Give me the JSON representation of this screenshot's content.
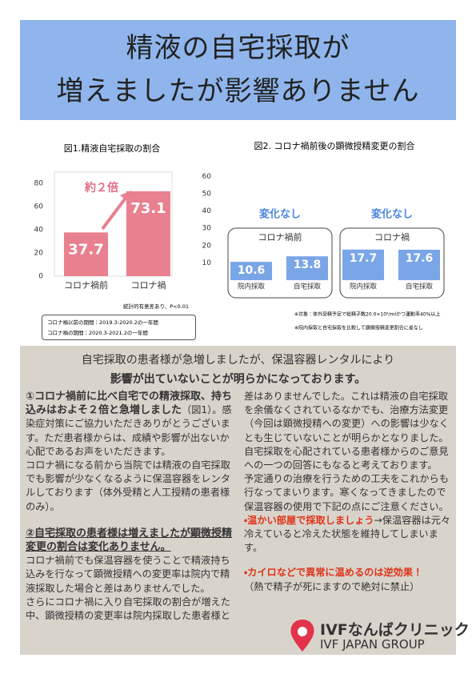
{
  "header": {
    "title_lines": [
      "精液の自宅採取が",
      "増えましたが影響ありません"
    ]
  },
  "figure1": {
    "type": "bar",
    "title": "図1.精液自宅採取の割合",
    "categories": [
      "コロナ禍前",
      "コロナ禍"
    ],
    "values": [
      37.7,
      73.1
    ],
    "color": "#e9808f",
    "ylim": [
      0,
      80
    ],
    "yticks": [
      0,
      20,
      40,
      60,
      80
    ],
    "annotation": "約２倍",
    "note": "統計的有意差あり、P<0.01"
  },
  "periods": [
    "コロナ禍以前の期間：2019.3-2020.2の一年間",
    "コロナ禍の期間：2020.3-2021.2の一年間"
  ],
  "figure2": {
    "type": "bar",
    "title": "図2. コロナ禍前後の顕微授精変更の割合",
    "groups": [
      "コロナ禍前",
      "コロナ禍"
    ],
    "group_notes": [
      "変化なし",
      "変化なし"
    ],
    "categories": [
      "院内採取",
      "自宅採取",
      "院内採取",
      "自宅採取"
    ],
    "values": [
      10.6,
      13.8,
      17.7,
      17.6
    ],
    "color": "#7aa6e8",
    "ylim": [
      0,
      60
    ],
    "yticks": [
      10,
      20,
      30,
      40,
      50,
      60
    ]
  },
  "footnotes": [
    "※対象：体外受精予定で総精子数20.0×10⁶/mlかつ運動率40%以上",
    "※院内採取と自宅採取を比較して顕微授精変更割合に差なし"
  ],
  "body": {
    "heading_lines": [
      "自宅採取の患者様が急増しましたが、保温容器レンタルにより",
      "影響が出ていないことが明らかになっております。"
    ],
    "left": [
      "①コロナ禍前に比べ自宅での精液採取、持ち込みはおよそ２倍と急増しました",
      "（図1）。感染症対策にご協力いただきありがとうございます。ただ患者様からは、成績や影響が出ないか心配であるお声をいただきます。",
      "コロナ禍になる前から当院では精液の自宅採取でも影響が少なくなるように保温容器をレンタルしております（体外受精と人工授精の患者様のみ）。",
      "②自宅採取の患者様は増えましたが顕微授精変更の割合は変化ありません。",
      "コロナ禍前でも保温容器を使うことで精液持ち込みを行なって顕微授精への変更率は院内で精液採取した場合と差はありませんでした。",
      "さらにコロナ禍に入り自宅採取の割合が増えた中、顕微授精の変更率は院内採取した患者様と"
    ],
    "right": [
      "差はありませんでした。これは精液の自宅採取を余儀なくされているなかでも、治療方法変更（今回は顕微授精への変更）への影響は少なくとも生じていないことが明らかとなりました。自宅採取を心配されている患者様からのご意見への一つの回答にもなると考えております。",
      "予定通りの治療を行うための工夫をこれからも行なってまいります。寒くなってきましたので保温容器の使用で下記の点にご注意ください。",
      "・温かい部屋で採取しましょう",
      "→保温容器は元々冷えていると冷えた状態を維持してしまいます。",
      "・カイロなどで異常に温めるのは逆効果！",
      "（熱で精子が死にますので絶対に禁止）"
    ]
  },
  "logo": {
    "name": "IVFなんばクリニック",
    "group": "IVF JAPAN GROUP"
  }
}
